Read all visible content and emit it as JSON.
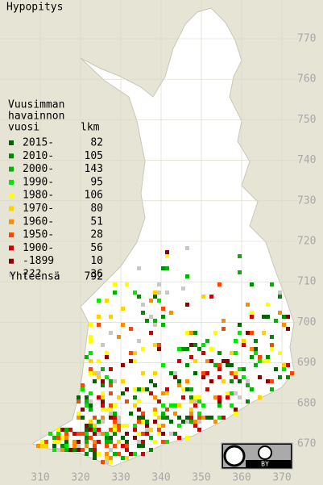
{
  "title": "Hypopitys",
  "legend": {
    "heading": [
      "Vuusimman",
      "havainnon",
      "vuosi"
    ],
    "count_heading": "lkm",
    "rows": [
      {
        "label": "2015-",
        "count": 82,
        "color": "#006400"
      },
      {
        "label": "2010-",
        "count": 105,
        "color": "#008c00"
      },
      {
        "label": "2000-",
        "count": 143,
        "color": "#00b400"
      },
      {
        "label": "1990-",
        "count": 95,
        "color": "#00e600"
      },
      {
        "label": "1980-",
        "count": 106,
        "color": "#ffff00"
      },
      {
        "label": "1970-",
        "count": 80,
        "color": "#ffd200"
      },
      {
        "label": "1960-",
        "count": 51,
        "color": "#ff8c00"
      },
      {
        "label": "1950-",
        "count": 28,
        "color": "#ff4600"
      },
      {
        "label": "1900-",
        "count": 56,
        "color": "#d20000"
      },
      {
        "label": "-1899",
        "count": 10,
        "color": "#8c0000"
      },
      {
        "label": "???",
        "count": 36,
        "color": "#c8c8c8"
      }
    ],
    "total_label": "Yhteensä",
    "total": 792
  },
  "x_axis": {
    "labels": [
      310,
      320,
      330,
      340,
      350,
      360,
      370
    ]
  },
  "y_axis": {
    "labels": [
      770,
      760,
      750,
      740,
      730,
      720,
      710,
      700,
      690,
      680,
      670
    ]
  },
  "badge": {
    "label": "BY"
  }
}
